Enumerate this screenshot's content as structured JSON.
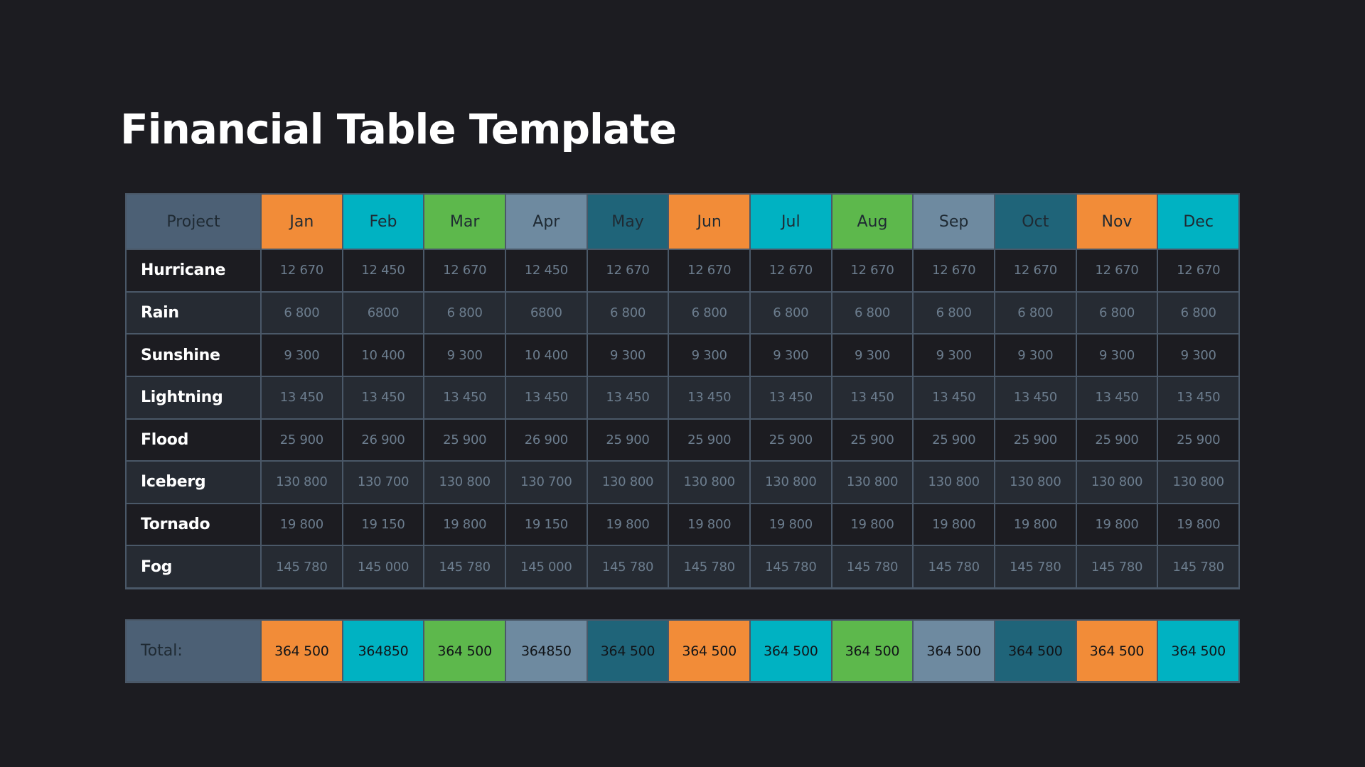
{
  "title": "Financial Table Template",
  "colors": {
    "orange": "#f28c38",
    "cyan": "#00b2c2",
    "green": "#5db84c",
    "slate": "#6e8aa0",
    "teal": "#1f6479",
    "project_header": "#4c6075",
    "background": "#1c1c21",
    "row_alt": "#262b33"
  },
  "table": {
    "project_header": "Project",
    "months": [
      "Jan",
      "Feb",
      "Mar",
      "Apr",
      "May",
      "Jun",
      "Jul",
      "Aug",
      "Sep",
      "Oct",
      "Nov",
      "Dec"
    ],
    "month_colors": [
      "orange",
      "cyan",
      "green",
      "slate",
      "teal",
      "orange",
      "cyan",
      "green",
      "slate",
      "teal",
      "orange",
      "cyan"
    ],
    "rows": [
      {
        "name": "Hurricane",
        "values": [
          "12 670",
          "12 450",
          "12 670",
          "12 450",
          "12 670",
          "12 670",
          "12 670",
          "12 670",
          "12 670",
          "12 670",
          "12 670",
          "12 670"
        ]
      },
      {
        "name": "Rain",
        "values": [
          "6 800",
          "6800",
          "6 800",
          "6800",
          "6 800",
          "6 800",
          "6 800",
          "6 800",
          "6 800",
          "6 800",
          "6 800",
          "6 800"
        ]
      },
      {
        "name": "Sunshine",
        "values": [
          "9 300",
          "10 400",
          "9 300",
          "10 400",
          "9 300",
          "9 300",
          "9 300",
          "9 300",
          "9 300",
          "9 300",
          "9 300",
          "9 300"
        ]
      },
      {
        "name": "Lightning",
        "values": [
          "13 450",
          "13 450",
          "13 450",
          "13 450",
          "13 450",
          "13 450",
          "13 450",
          "13 450",
          "13 450",
          "13 450",
          "13 450",
          "13 450"
        ]
      },
      {
        "name": "Flood",
        "values": [
          "25 900",
          "26 900",
          "25 900",
          "26 900",
          "25 900",
          "25 900",
          "25 900",
          "25 900",
          "25 900",
          "25 900",
          "25 900",
          "25 900"
        ]
      },
      {
        "name": "Iceberg",
        "values": [
          "130 800",
          "130 700",
          "130 800",
          "130 700",
          "130 800",
          "130 800",
          "130 800",
          "130 800",
          "130 800",
          "130 800",
          "130 800",
          "130 800"
        ]
      },
      {
        "name": "Tornado",
        "values": [
          "19 800",
          "19 150",
          "19 800",
          "19 150",
          "19 800",
          "19 800",
          "19 800",
          "19 800",
          "19 800",
          "19 800",
          "19 800",
          "19 800"
        ]
      },
      {
        "name": "Fog",
        "values": [
          "145 780",
          "145 000",
          "145 780",
          "145 000",
          "145 780",
          "145 780",
          "145 780",
          "145 780",
          "145 780",
          "145 780",
          "145 780",
          "145 780"
        ]
      }
    ]
  },
  "totals": {
    "label": "Total:",
    "values": [
      "364 500",
      "364850",
      "364 500",
      "364850",
      "364 500",
      "364 500",
      "364 500",
      "364 500",
      "364 500",
      "364 500",
      "364 500",
      "364 500"
    ]
  }
}
